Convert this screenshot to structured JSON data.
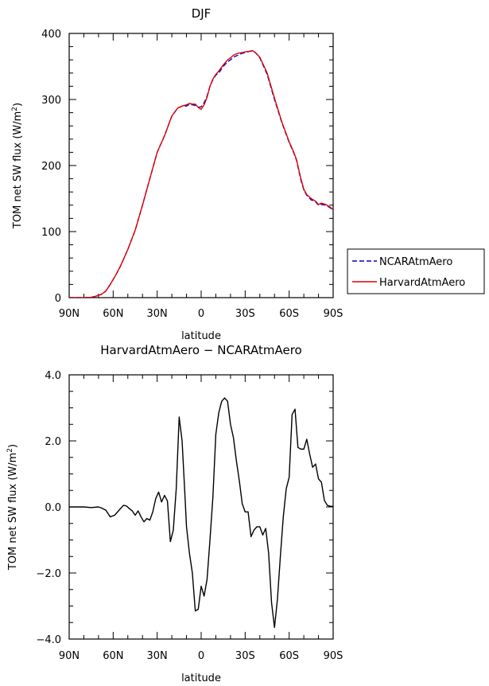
{
  "chart_data": [
    {
      "type": "line",
      "title": "DJF",
      "xlabel": "latitude",
      "ylabel": "TOM net SW flux (W/m²)",
      "ylabel_text": "TOM net SW flux (W/m",
      "ylabel_sup": "2",
      "ylabel_close": ")",
      "xlim": [
        -90,
        90
      ],
      "ylim": [
        0,
        400
      ],
      "x_ticks": [
        -90,
        -60,
        -30,
        0,
        30,
        60,
        90
      ],
      "x_tick_labels": [
        "90N",
        "60N",
        "30N",
        "0",
        "30S",
        "60S",
        "90S"
      ],
      "y_ticks": [
        0,
        100,
        200,
        300,
        400
      ],
      "y_tick_labels": [
        "0",
        "100",
        "200",
        "300",
        "400"
      ],
      "legend_position": "right",
      "series": [
        {
          "name": "NCARAtmAero",
          "color": "#0000cc",
          "dash": true,
          "x": [
            -90,
            -85,
            -80,
            -75,
            -72,
            -68,
            -65,
            -62,
            -58,
            -55,
            -50,
            -45,
            -40,
            -35,
            -30,
            -25,
            -20,
            -16,
            -13,
            -10,
            -8,
            -6,
            -4,
            -2,
            0,
            2,
            4,
            6,
            8,
            10,
            12,
            15,
            18,
            20,
            22,
            25,
            28,
            30,
            33,
            35,
            37,
            40,
            45,
            50,
            55,
            60,
            63,
            65,
            68,
            70,
            72,
            75,
            78,
            80,
            82,
            85,
            88,
            90
          ],
          "y": [
            0,
            0,
            0,
            0.5,
            2,
            5,
            10,
            20,
            35,
            48,
            73,
            102,
            140,
            180,
            220,
            245,
            275,
            287,
            290,
            290,
            293,
            292,
            291,
            288,
            289,
            295,
            305,
            320,
            330,
            337,
            340,
            350,
            357,
            360,
            364,
            367,
            370,
            371,
            373,
            373,
            371,
            363,
            338,
            300,
            265,
            235,
            220,
            208,
            178,
            163,
            155,
            148,
            145,
            140,
            141,
            140,
            136,
            133
          ]
        },
        {
          "name": "HarvardAtmAero",
          "color": "#dd0000",
          "dash": false,
          "x": [
            -90,
            -85,
            -80,
            -75,
            -72,
            -68,
            -65,
            -62,
            -58,
            -55,
            -50,
            -45,
            -40,
            -35,
            -30,
            -25,
            -20,
            -16,
            -13,
            -10,
            -8,
            -6,
            -4,
            -2,
            0,
            2,
            4,
            6,
            8,
            10,
            12,
            15,
            18,
            20,
            22,
            25,
            28,
            30,
            33,
            35,
            37,
            40,
            45,
            50,
            55,
            60,
            63,
            65,
            68,
            70,
            72,
            75,
            78,
            80,
            82,
            85,
            88,
            90
          ],
          "y": [
            0,
            0,
            0,
            0.5,
            2,
            5,
            10,
            20,
            35,
            48,
            73,
            102,
            140,
            180,
            220,
            245,
            275,
            287,
            290,
            292,
            294,
            293,
            293,
            288,
            285,
            292,
            303,
            320,
            331,
            338,
            343,
            352,
            360,
            363,
            367,
            370,
            371,
            372,
            373,
            374,
            371,
            364,
            340,
            302,
            266,
            236,
            221,
            209,
            180,
            164,
            156,
            150,
            146,
            141,
            143,
            141,
            137,
            133
          ]
        }
      ]
    },
    {
      "type": "line",
      "title": "HarvardAtmAero − NCARAtmAero",
      "xlabel": "latitude",
      "ylabel": "TOM net SW flux (W/m²)",
      "ylabel_text": "TOM net SW flux (W/m",
      "ylabel_sup": "2",
      "ylabel_close": ")",
      "xlim": [
        -90,
        90
      ],
      "ylim": [
        -4,
        4
      ],
      "x_ticks": [
        -90,
        -60,
        -30,
        0,
        30,
        60,
        90
      ],
      "x_tick_labels": [
        "90N",
        "60N",
        "30N",
        "0",
        "30S",
        "60S",
        "90S"
      ],
      "y_ticks": [
        -4,
        -2,
        0,
        2,
        4
      ],
      "y_tick_labels": [
        "−4.0",
        "−2.0",
        "0.0",
        "2.0",
        "4.0"
      ],
      "series": [
        {
          "name": "",
          "color": "#000000",
          "dash": false,
          "x": [
            -90,
            -80,
            -75,
            -70,
            -68,
            -65,
            -62,
            -59,
            -57,
            -55,
            -53,
            -51,
            -49,
            -47,
            -45,
            -43,
            -41,
            -39,
            -37,
            -35,
            -33,
            -31,
            -29,
            -27,
            -25,
            -23,
            -21,
            -19,
            -17,
            -15,
            -13,
            -11,
            -10,
            -8,
            -6,
            -4,
            -2,
            0,
            2,
            4,
            6,
            8,
            10,
            12,
            14,
            16,
            18,
            20,
            22,
            24,
            26,
            28,
            30,
            32,
            34,
            36,
            38,
            40,
            42,
            44,
            46,
            48,
            50,
            52,
            54,
            56,
            58,
            60,
            62,
            64,
            66,
            68,
            70,
            72,
            74,
            76,
            78,
            80,
            82,
            84,
            86,
            88,
            90
          ],
          "y": [
            0,
            0,
            -0.02,
            0,
            -0.03,
            -0.1,
            -0.3,
            -0.25,
            -0.15,
            -0.05,
            0.05,
            0.03,
            -0.05,
            -0.12,
            -0.25,
            -0.12,
            -0.3,
            -0.45,
            -0.35,
            -0.4,
            -0.15,
            0.25,
            0.45,
            0.15,
            0.35,
            0.18,
            -1.05,
            -0.7,
            0.55,
            2.72,
            2.0,
            0.3,
            -0.6,
            -1.4,
            -2.0,
            -3.15,
            -3.1,
            -2.4,
            -2.7,
            -2.2,
            -1.0,
            0.3,
            2.2,
            2.85,
            3.2,
            3.3,
            3.2,
            2.5,
            2.1,
            1.4,
            0.8,
            0.1,
            -0.15,
            -0.15,
            -0.9,
            -0.7,
            -0.6,
            -0.6,
            -0.85,
            -0.65,
            -1.4,
            -2.9,
            -3.65,
            -2.8,
            -1.5,
            -0.3,
            0.55,
            0.9,
            2.8,
            2.96,
            1.8,
            1.75,
            1.75,
            2.05,
            1.6,
            1.2,
            1.3,
            0.85,
            0.75,
            0.2,
            0.05,
            0.02,
            0.02
          ]
        }
      ]
    }
  ]
}
